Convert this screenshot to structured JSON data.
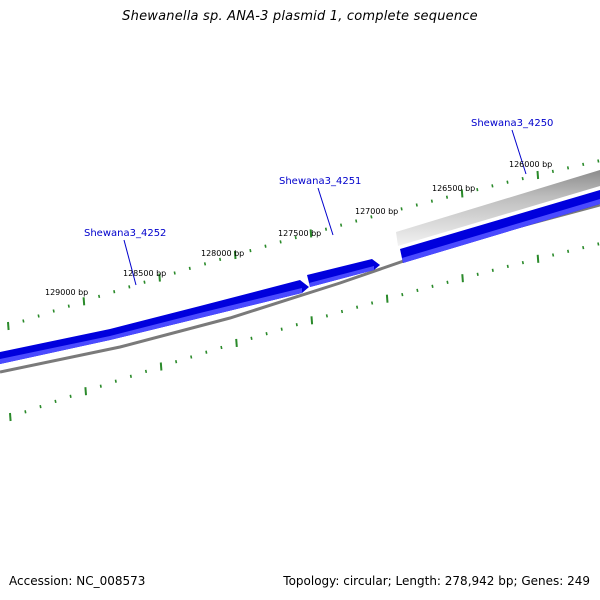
{
  "title": "Shewanella sp. ANA-3 plasmid 1, complete sequence",
  "footer": {
    "accession": "Accession: NC_008573",
    "summary": "Topology: circular; Length: 278,942 bp; Genes: 249"
  },
  "ruler_labels": [
    "126000 bp",
    "126500 bp",
    "127000 bp",
    "127500 bp",
    "128000 bp",
    "128500 bp",
    "129000 bp"
  ],
  "genes": [
    {
      "name": "Shewana3_4250",
      "color": "#0000dd"
    },
    {
      "name": "Shewana3_4251",
      "color": "#0000dd"
    },
    {
      "name": "Shewana3_4252",
      "color": "#0000dd"
    }
  ],
  "colors": {
    "gene": "#0000dd",
    "gene_light": "#4a4aff",
    "backbone": "#808080",
    "ruler_tick": "#2a8a2a",
    "gene_label": "#0000cc"
  }
}
